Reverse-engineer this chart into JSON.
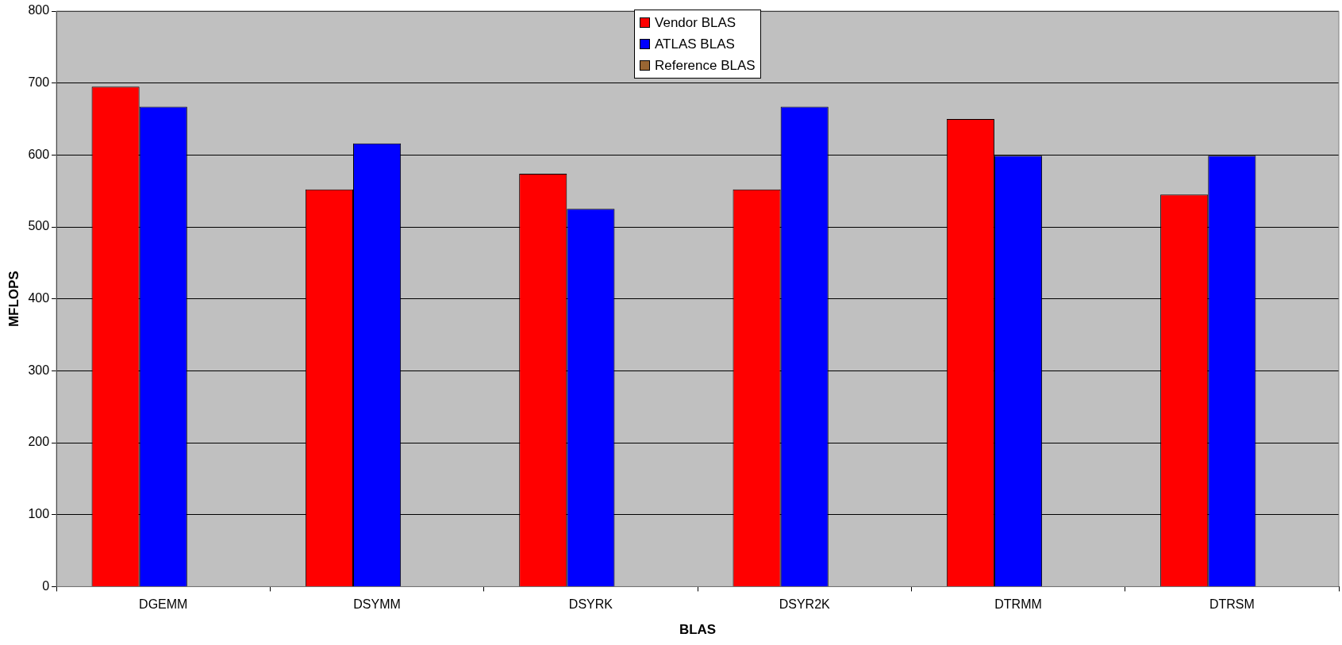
{
  "chart_data": {
    "type": "bar",
    "xlabel": "BLAS",
    "ylabel": "MFLOPS",
    "categories": [
      "DGEMM",
      "DSYMM",
      "DSYRK",
      "DSYR2K",
      "DTRMM",
      "DTRSM"
    ],
    "series": [
      {
        "name": "Vendor BLAS",
        "color": "#ff0000",
        "values": [
          695,
          552,
          574,
          552,
          650,
          545
        ]
      },
      {
        "name": "ATLAS BLAS",
        "color": "#0000ff",
        "values": [
          667,
          616,
          525,
          667,
          599,
          599
        ]
      },
      {
        "name": "Reference BLAS",
        "color": "#996633",
        "values": [
          null,
          null,
          null,
          null,
          null,
          null
        ]
      }
    ],
    "ylim": [
      0,
      800
    ],
    "yticks": [
      0,
      100,
      200,
      300,
      400,
      500,
      600,
      700,
      800
    ],
    "grid": "y",
    "legend": "top"
  }
}
